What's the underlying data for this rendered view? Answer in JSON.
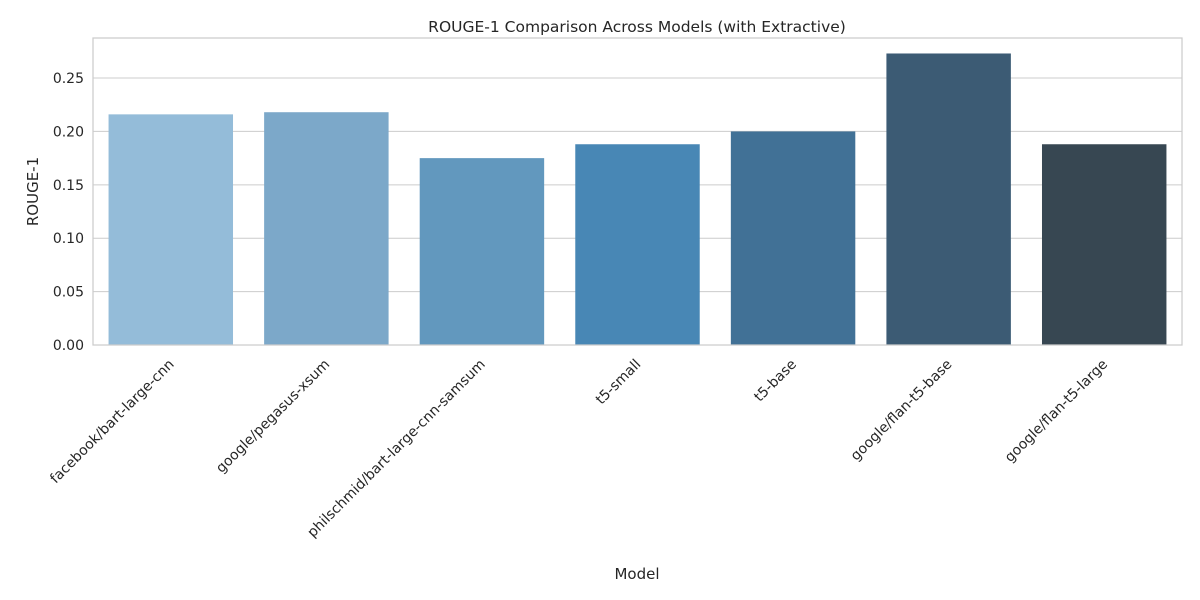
{
  "chart_data": {
    "type": "bar",
    "title": "ROUGE-1 Comparison Across Models (with Extractive)",
    "xlabel": "Model",
    "ylabel": "ROUGE-1",
    "categories": [
      "facebook/bart-large-cnn",
      "google/pegasus-xsum",
      "philschmid/bart-large-cnn-samsum",
      "t5-small",
      "t5-base",
      "google/flan-t5-base",
      "google/flan-t5-large"
    ],
    "values": [
      0.216,
      0.218,
      0.175,
      0.188,
      0.2,
      0.273,
      0.188
    ],
    "colors": [
      "#94BCD9",
      "#7CA8C9",
      "#6298BE",
      "#4887B5",
      "#417196",
      "#3C5B74",
      "#374752"
    ],
    "ylim": [
      0,
      0.2875
    ],
    "yticks": [
      0.0,
      0.05,
      0.1,
      0.15,
      0.2,
      0.25
    ],
    "ytick_labels": [
      "0.00",
      "0.05",
      "0.10",
      "0.15",
      "0.20",
      "0.25"
    ],
    "grid": "horizontal",
    "legend": "none"
  }
}
